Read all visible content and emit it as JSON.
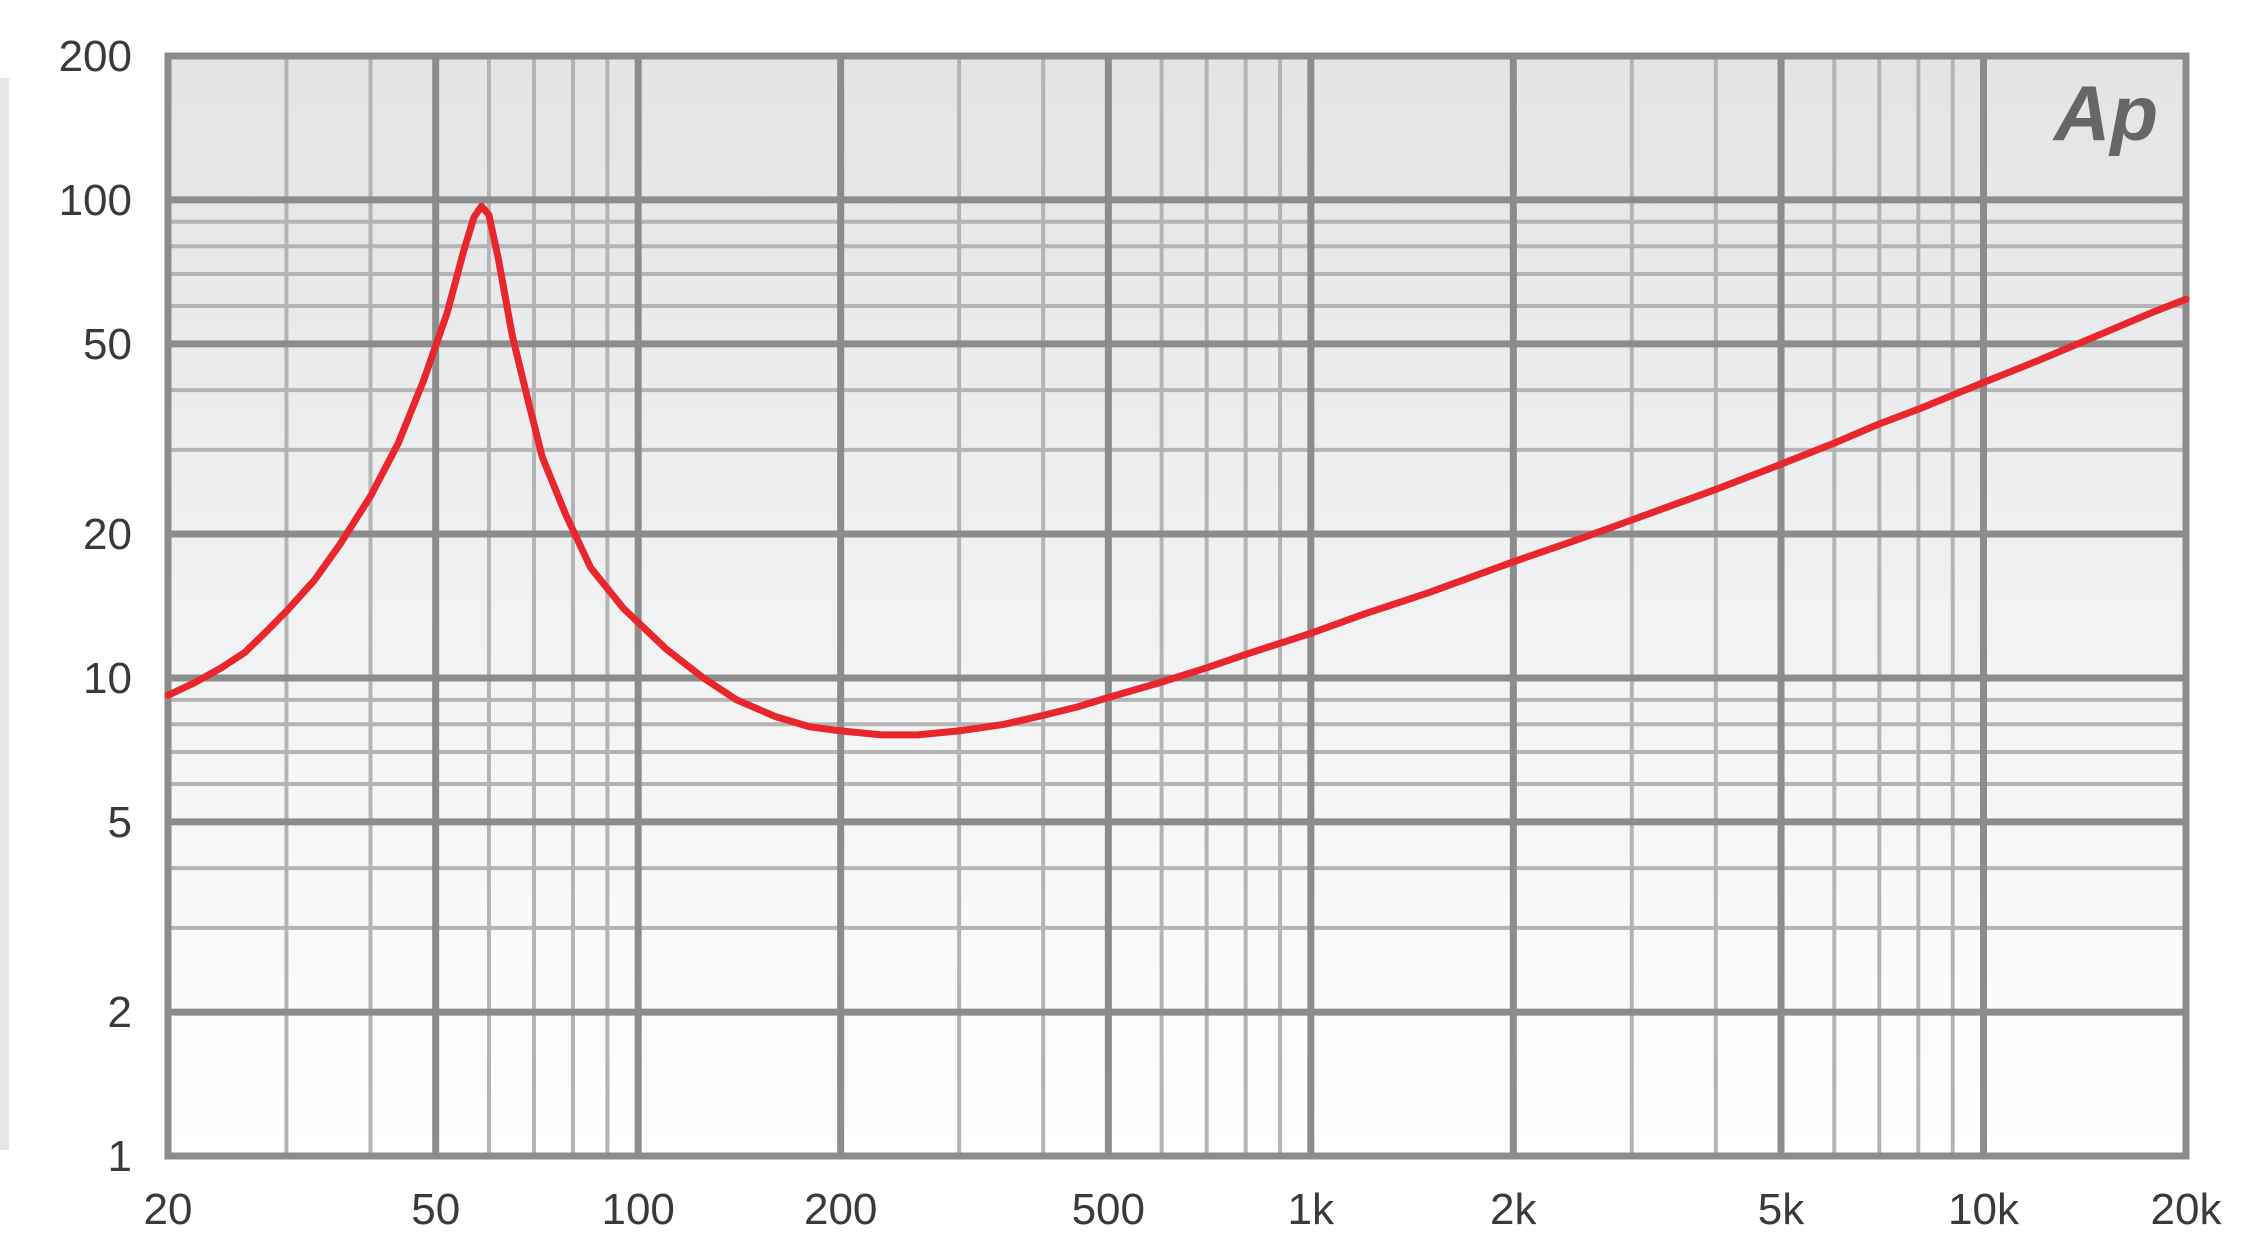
{
  "chart_data": {
    "type": "line",
    "title": "",
    "xlabel": "",
    "ylabel": "",
    "x_scale": "log",
    "y_scale": "log",
    "xlim": [
      20,
      20000
    ],
    "ylim": [
      1,
      200
    ],
    "grid": true,
    "logo": "Ap",
    "x_ticks": [
      {
        "value": 20,
        "label": "20"
      },
      {
        "value": 50,
        "label": "50"
      },
      {
        "value": 100,
        "label": "100"
      },
      {
        "value": 200,
        "label": "200"
      },
      {
        "value": 500,
        "label": "500"
      },
      {
        "value": 1000,
        "label": "1k"
      },
      {
        "value": 2000,
        "label": "2k"
      },
      {
        "value": 5000,
        "label": "5k"
      },
      {
        "value": 10000,
        "label": "10k"
      },
      {
        "value": 20000,
        "label": "20k"
      }
    ],
    "y_ticks": [
      {
        "value": 1,
        "label": "1"
      },
      {
        "value": 2,
        "label": "2"
      },
      {
        "value": 5,
        "label": "5"
      },
      {
        "value": 10,
        "label": "10"
      },
      {
        "value": 20,
        "label": "20"
      },
      {
        "value": 50,
        "label": "50"
      },
      {
        "value": 100,
        "label": "100"
      },
      {
        "value": 200,
        "label": "200"
      }
    ],
    "series": [
      {
        "color": "#e8262b",
        "points": [
          [
            20,
            9.2
          ],
          [
            22,
            9.8
          ],
          [
            24,
            10.5
          ],
          [
            26,
            11.3
          ],
          [
            28,
            12.5
          ],
          [
            30,
            13.8
          ],
          [
            33,
            16
          ],
          [
            36,
            19
          ],
          [
            40,
            24
          ],
          [
            44,
            31
          ],
          [
            48,
            42
          ],
          [
            52,
            58
          ],
          [
            55,
            78
          ],
          [
            57,
            92
          ],
          [
            58.5,
            97
          ],
          [
            60,
            93
          ],
          [
            62,
            75
          ],
          [
            65,
            52
          ],
          [
            68,
            40
          ],
          [
            72,
            29
          ],
          [
            78,
            22
          ],
          [
            85,
            17
          ],
          [
            95,
            14
          ],
          [
            110,
            11.5
          ],
          [
            125,
            10
          ],
          [
            140,
            9
          ],
          [
            160,
            8.3
          ],
          [
            180,
            7.9
          ],
          [
            200,
            7.75
          ],
          [
            230,
            7.6
          ],
          [
            260,
            7.6
          ],
          [
            300,
            7.75
          ],
          [
            350,
            8.0
          ],
          [
            400,
            8.35
          ],
          [
            450,
            8.7
          ],
          [
            500,
            9.1
          ],
          [
            600,
            9.8
          ],
          [
            700,
            10.5
          ],
          [
            800,
            11.2
          ],
          [
            1000,
            12.4
          ],
          [
            1200,
            13.6
          ],
          [
            1500,
            15.1
          ],
          [
            2000,
            17.5
          ],
          [
            2500,
            19.5
          ],
          [
            3000,
            21.4
          ],
          [
            4000,
            24.8
          ],
          [
            5000,
            28
          ],
          [
            6000,
            31
          ],
          [
            7000,
            34
          ],
          [
            8000,
            36.5
          ],
          [
            10000,
            41.5
          ],
          [
            12000,
            46
          ],
          [
            15000,
            52.5
          ],
          [
            18000,
            58.5
          ],
          [
            20000,
            62
          ]
        ]
      }
    ]
  }
}
